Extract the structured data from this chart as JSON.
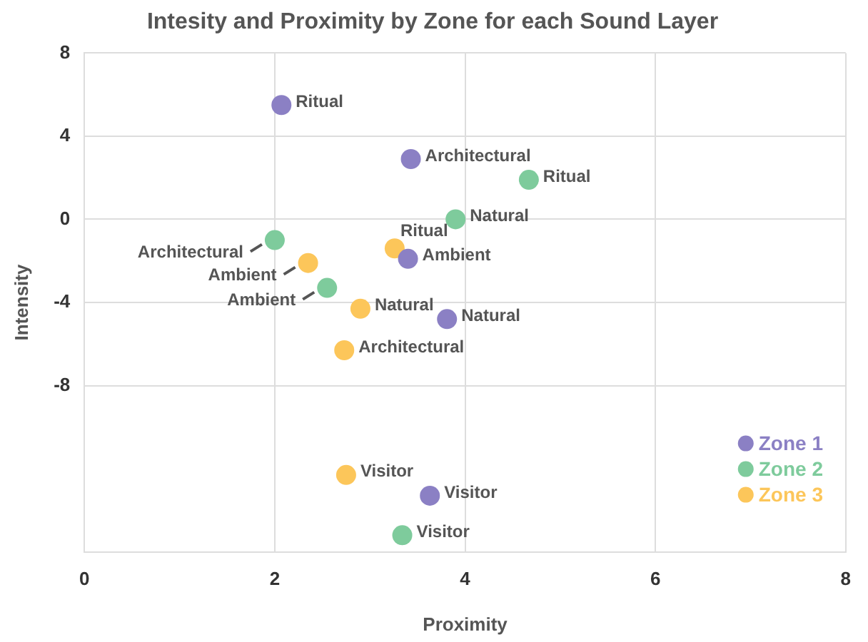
{
  "chart_data": {
    "type": "scatter",
    "title": "Intesity and Proximity by Zone for each Sound Layer",
    "xlabel": "Proximity",
    "ylabel": "Intensity",
    "xlim": [
      0,
      8
    ],
    "xticks": [
      0,
      2,
      4,
      6,
      8
    ],
    "ylim": [
      -16,
      8
    ],
    "yticks": [
      8,
      4,
      0,
      -4,
      -8
    ],
    "grid": true,
    "legend": "bottom right",
    "marker": "circle",
    "series": [
      {
        "name": "Zone 1",
        "color": "#8b80c4",
        "x": [
          2.07,
          3.43,
          3.4,
          3.81,
          3.63
        ],
        "values": [
          5.5,
          2.9,
          -1.9,
          -4.8,
          -13.3
        ],
        "value_labels": [
          "Ritual",
          "Architectural",
          "Ambient",
          "Natural",
          "Visitor"
        ]
      },
      {
        "name": "Zone 2",
        "color": "#7ecb9c",
        "x": [
          4.67,
          3.9,
          2.0,
          2.55,
          3.34
        ],
        "values": [
          1.9,
          0,
          -1.0,
          -3.3,
          -15.2
        ],
        "value_labels": [
          "Ritual",
          "Natural",
          "Architectural",
          "Ambient",
          "Visitor"
        ]
      },
      {
        "name": "Zone 3",
        "color": "#fcc65a",
        "x": [
          3.26,
          2.35,
          2.9,
          2.73,
          2.75
        ],
        "values": [
          -1.4,
          -2.1,
          -4.3,
          -6.3,
          -12.3
        ],
        "value_labels": [
          "Ritual",
          "Ambient",
          "Natural",
          "Architectural",
          "Visitor"
        ]
      }
    ]
  }
}
